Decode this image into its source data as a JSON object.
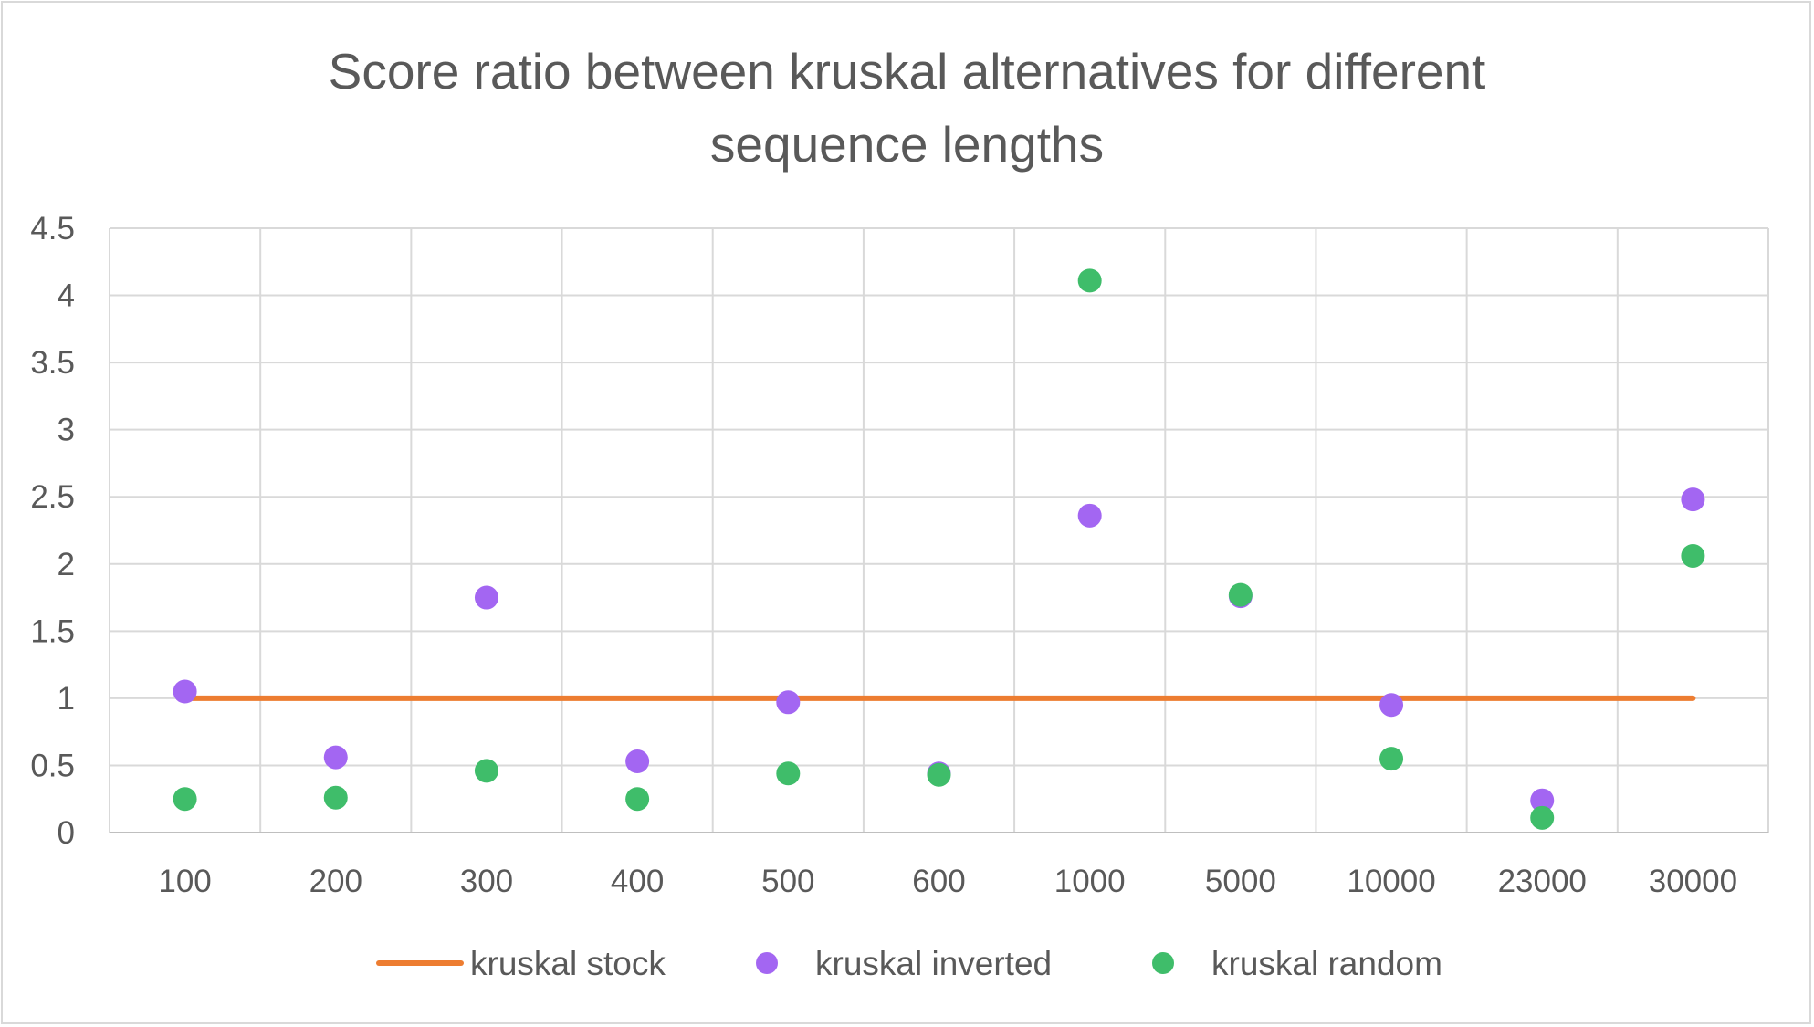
{
  "chart_data": {
    "type": "scatter",
    "title": "Score ratio between kruskal alternatives for different sequence lengths",
    "title_lines": [
      "Score ratio between kruskal alternatives for different",
      "sequence lengths"
    ],
    "xlabel": "",
    "ylabel": "",
    "categories": [
      "100",
      "200",
      "300",
      "400",
      "500",
      "600",
      "1000",
      "5000",
      "10000",
      "23000",
      "30000"
    ],
    "ylim": [
      0,
      4.5
    ],
    "yticks": [
      "0",
      "0.5",
      "1",
      "1.5",
      "2",
      "2.5",
      "3",
      "3.5",
      "4",
      "4.5"
    ],
    "grid": true,
    "legend_position": "bottom",
    "series": [
      {
        "name": "kruskal stock",
        "style": "line",
        "color": "#ED7D31",
        "values": [
          1,
          1,
          1,
          1,
          1,
          1,
          1,
          1,
          1,
          1,
          1
        ]
      },
      {
        "name": "kruskal inverted",
        "style": "marker",
        "color": "#A366F2",
        "values": [
          1.05,
          0.56,
          1.75,
          0.53,
          0.97,
          0.44,
          2.36,
          1.76,
          0.95,
          0.24,
          2.48
        ]
      },
      {
        "name": "kruskal random",
        "style": "marker",
        "color": "#3FBD6A",
        "values": [
          0.25,
          0.26,
          0.46,
          0.25,
          0.44,
          0.43,
          4.11,
          1.77,
          0.55,
          0.11,
          2.06
        ]
      }
    ]
  }
}
